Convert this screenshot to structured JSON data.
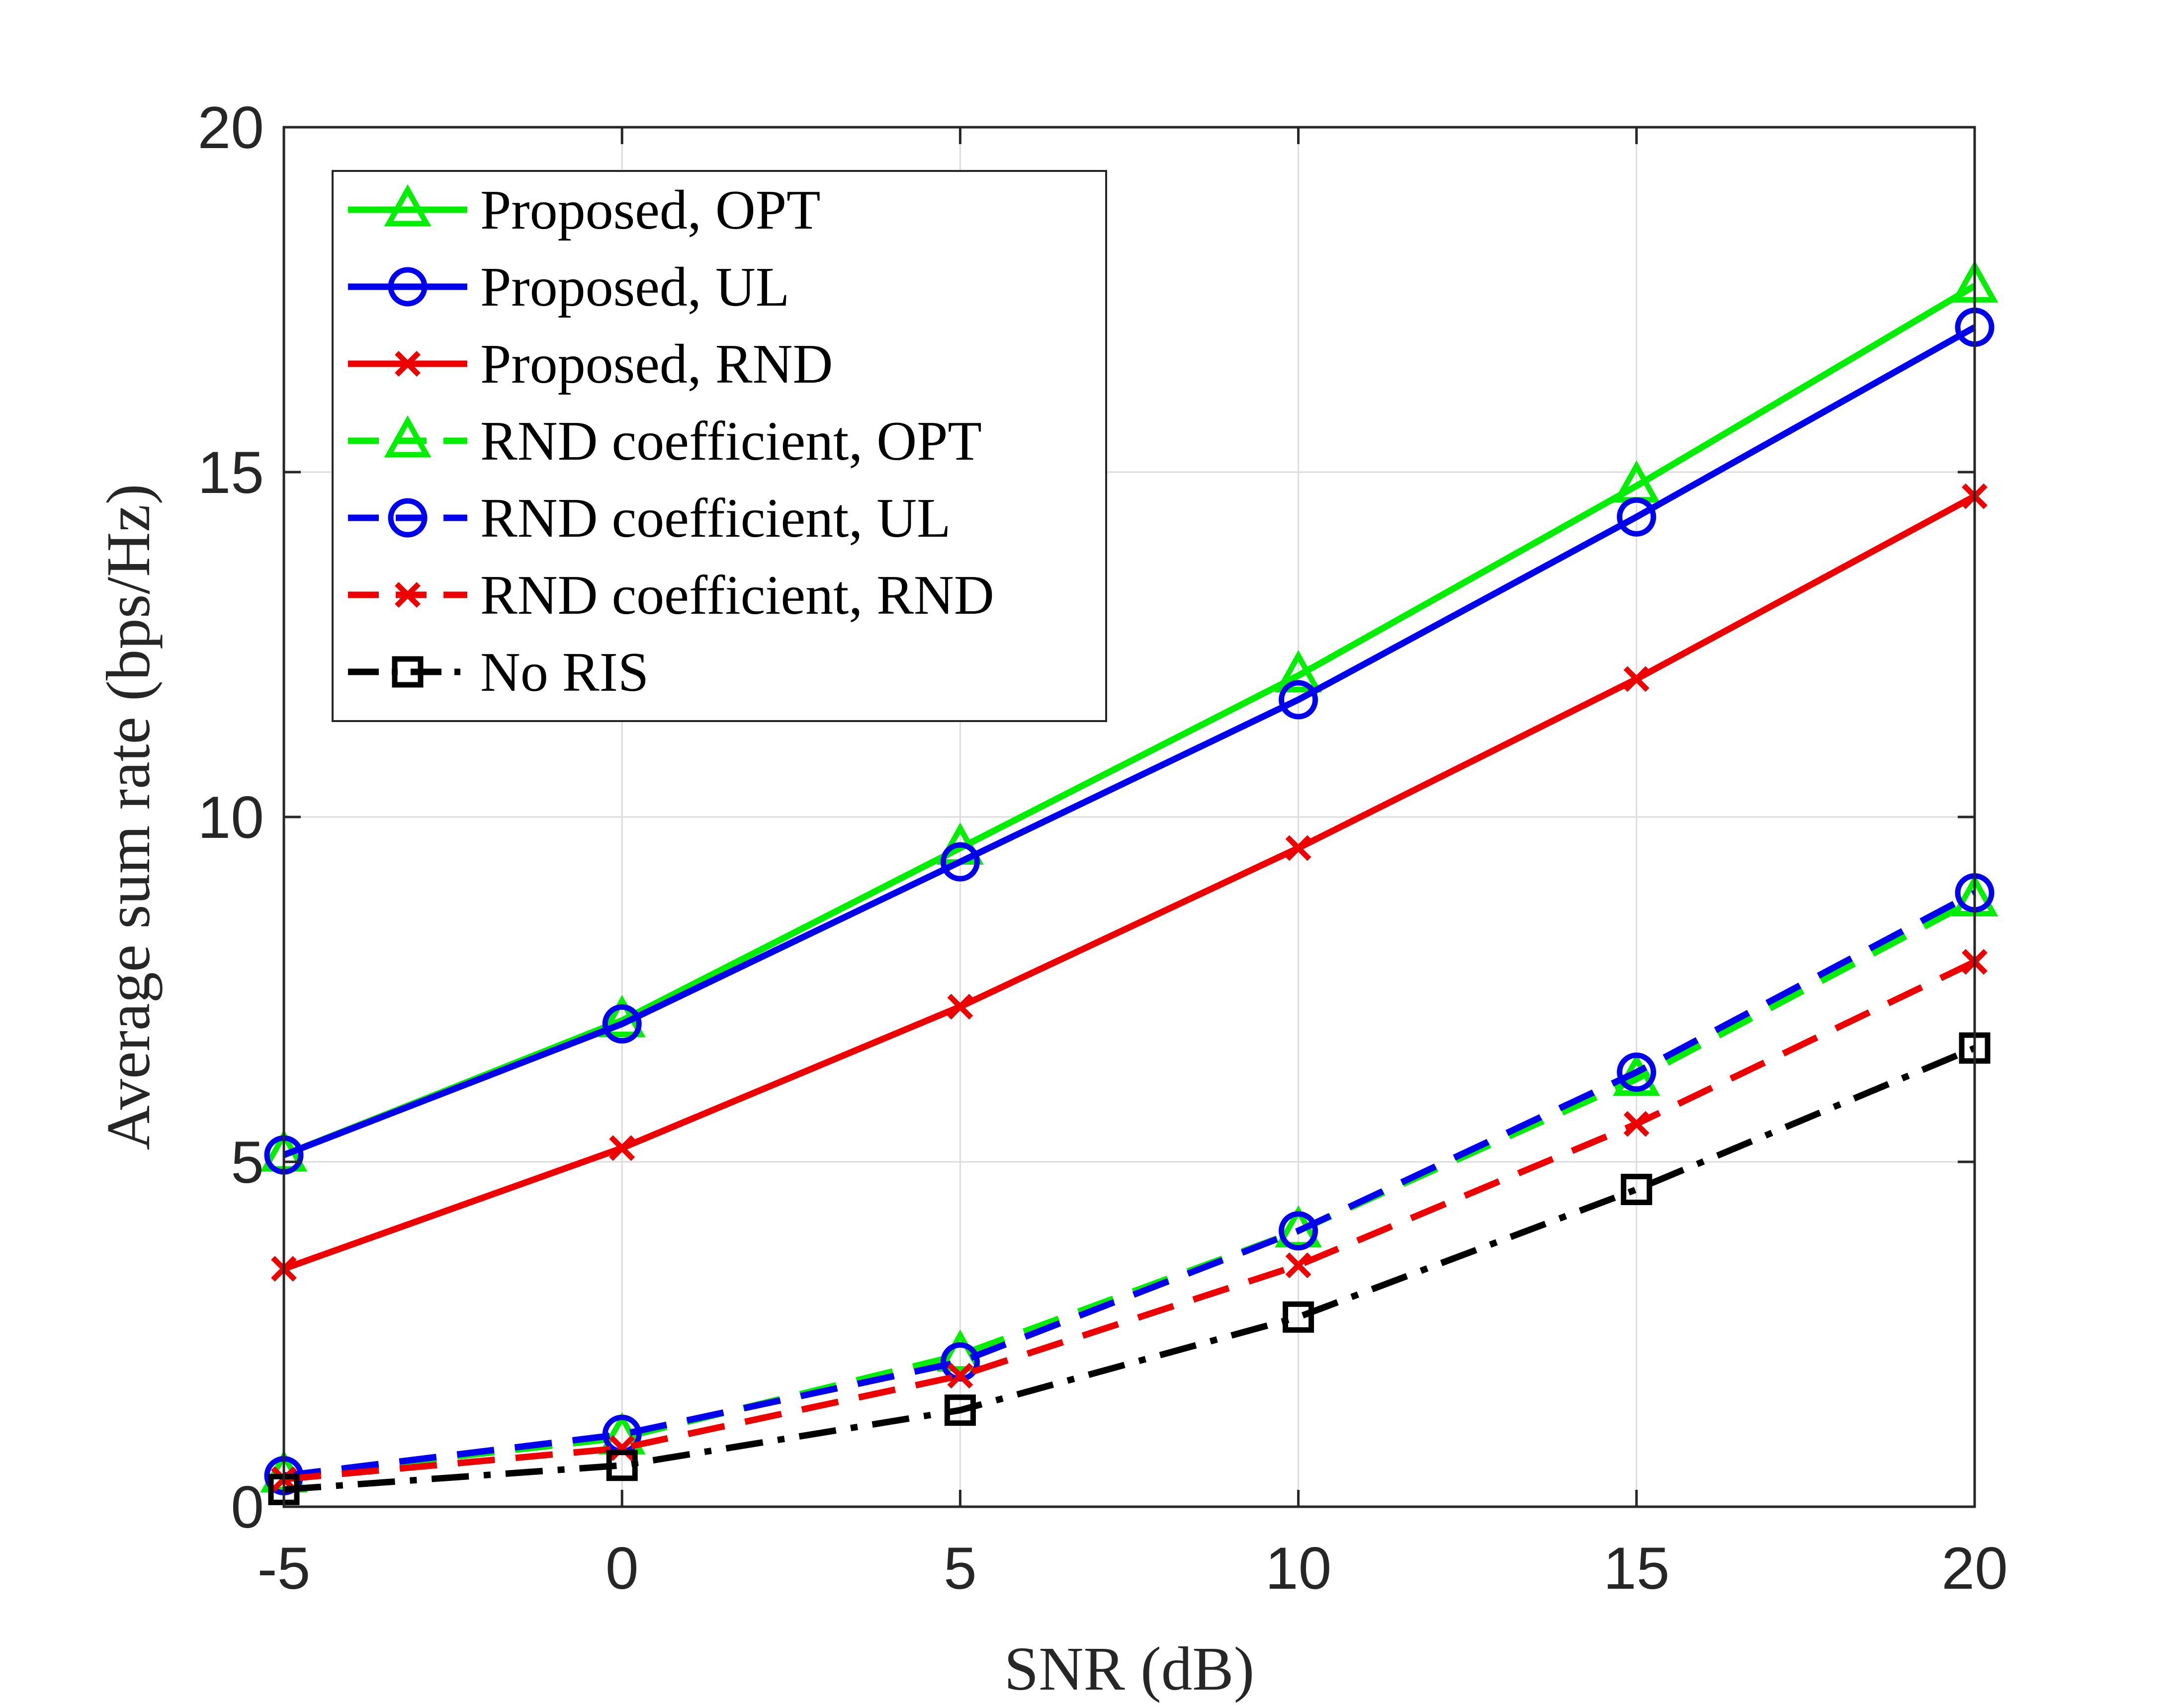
{
  "chart_data": {
    "type": "line",
    "title": "",
    "xlabel": "SNR (dB)",
    "ylabel": "Average sum rate (bps/Hz)",
    "xlim": [
      -5,
      20
    ],
    "ylim": [
      0,
      20
    ],
    "xticks": [
      -5,
      0,
      5,
      10,
      15,
      20
    ],
    "yticks": [
      0,
      5,
      10,
      15,
      20
    ],
    "xtick_labels": [
      "-5",
      "0",
      "5",
      "10",
      "15",
      "20"
    ],
    "ytick_labels": [
      "0",
      "5",
      "10",
      "15",
      "20"
    ],
    "grid": true,
    "legend_position": "top-left",
    "x": [
      -5,
      0,
      5,
      10,
      15,
      20
    ],
    "series": [
      {
        "name": "Proposed, OPT",
        "values": [
          5.1,
          7.05,
          9.55,
          12.05,
          14.8,
          17.7
        ],
        "color": "#00ee00",
        "dash": "solid",
        "marker": "triangle"
      },
      {
        "name": "Proposed, UL",
        "values": [
          5.1,
          7.0,
          9.35,
          11.7,
          14.35,
          17.1
        ],
        "color": "#0000ee",
        "dash": "solid",
        "marker": "circle"
      },
      {
        "name": "Proposed, RND",
        "values": [
          3.45,
          5.2,
          7.25,
          9.55,
          12.0,
          14.65
        ],
        "color": "#ee0000",
        "dash": "solid",
        "marker": "x"
      },
      {
        "name": "RND coefficient, OPT",
        "values": [
          0.45,
          1.0,
          2.2,
          4.0,
          6.2,
          8.8
        ],
        "color": "#00ee00",
        "dash": "dashed",
        "marker": "triangle"
      },
      {
        "name": "RND coefficient, UL",
        "values": [
          0.45,
          1.05,
          2.1,
          4.0,
          6.3,
          8.9
        ],
        "color": "#0000ee",
        "dash": "dashed",
        "marker": "circle"
      },
      {
        "name": "RND coefficient, RND",
        "values": [
          0.4,
          0.85,
          1.9,
          3.5,
          5.55,
          7.9
        ],
        "color": "#ee0000",
        "dash": "dashed",
        "marker": "x"
      },
      {
        "name": "No RIS",
        "values": [
          0.25,
          0.6,
          1.4,
          2.75,
          4.6,
          6.65
        ],
        "color": "#000000",
        "dash": "dashdot",
        "marker": "square"
      }
    ]
  }
}
